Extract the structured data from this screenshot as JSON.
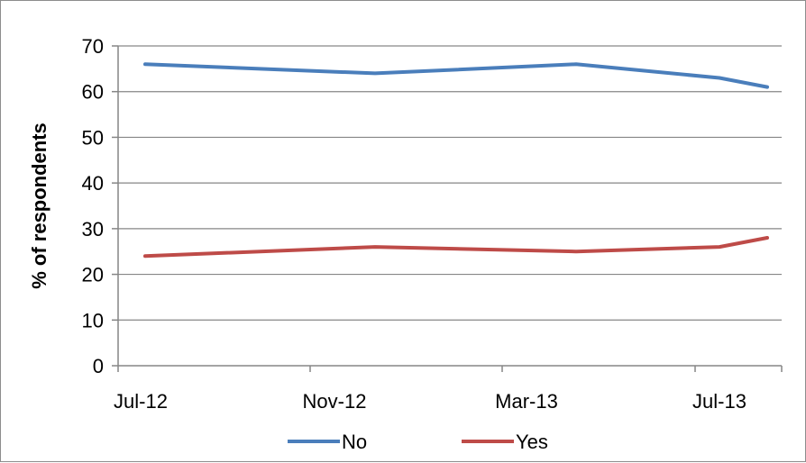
{
  "chart_data": {
    "type": "line",
    "title": "",
    "xlabel": "",
    "ylabel": "% of respondents",
    "ylim": [
      0,
      70
    ],
    "y_ticks": [
      0,
      10,
      20,
      30,
      40,
      50,
      60,
      70
    ],
    "x_tick_labels": [
      "Jul-12",
      "Nov-12",
      "Mar-13",
      "Jul-13"
    ],
    "x": [
      "2012-07",
      "2012-12",
      "2013-05",
      "2013-07",
      "2013-09"
    ],
    "series": [
      {
        "name": "No",
        "color": "#4a7ebb",
        "values": [
          66,
          64,
          66,
          63,
          61
        ]
      },
      {
        "name": "Yes",
        "color": "#be4b48",
        "values": [
          24,
          26,
          25,
          26,
          28
        ]
      }
    ],
    "grid": "horizontal major gridlines",
    "legend_position": "bottom"
  }
}
